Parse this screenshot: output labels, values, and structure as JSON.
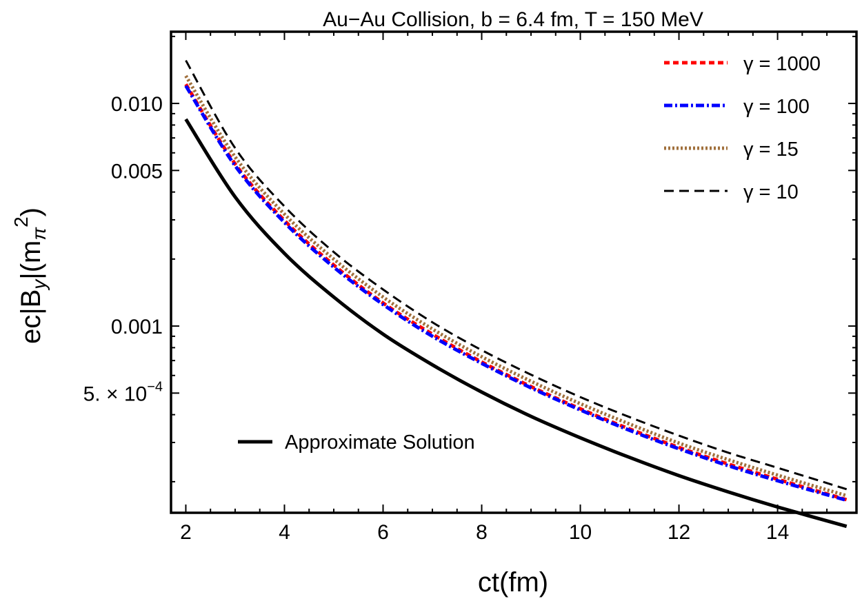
{
  "chart_data": {
    "type": "line",
    "title": "Au−Au Collision, b = 6.4 fm, T = 150 MeV",
    "xlabel": "ct(fm)",
    "ylabel": {
      "prefix": "ec|B",
      "sub": "y",
      "mid": "|(m",
      "sub2": "π",
      "sup": "2",
      "suffix": ")"
    },
    "xlim": [
      1.7,
      15.6
    ],
    "ylim": [
      0.000145,
      0.021
    ],
    "yscale": "log",
    "x_ticks": [
      2,
      4,
      6,
      8,
      10,
      12,
      14
    ],
    "x_tick_labels": [
      "2",
      "4",
      "6",
      "8",
      "10",
      "12",
      "14"
    ],
    "y_ticks": [
      0.01,
      0.005,
      0.001,
      0.0005
    ],
    "y_tick_labels": [
      "0.010",
      "0.005",
      "0.001",
      "5. × 10"
    ],
    "y_tick_exp": "−4",
    "x": [
      2,
      3,
      4,
      5,
      6,
      7,
      8,
      9,
      10,
      11,
      12,
      13,
      14,
      15.4
    ],
    "series": [
      {
        "name": "γ = 1000",
        "color": "#ff0000",
        "dash": "8,5",
        "width": 5,
        "values": [
          0.0122,
          0.00535,
          0.00298,
          0.00188,
          0.00127,
          0.00092,
          0.00069,
          0.000535,
          0.000425,
          0.000345,
          0.000285,
          0.00024,
          0.000205,
          0.000166
        ]
      },
      {
        "name": "γ = 100",
        "color": "#0000ff",
        "dash": "12,4,3,4",
        "width": 5,
        "values": [
          0.012,
          0.00525,
          0.00292,
          0.00184,
          0.00125,
          0.0009,
          0.00068,
          0.000528,
          0.00042,
          0.00034,
          0.000281,
          0.000236,
          0.000202,
          0.000165
        ]
      },
      {
        "name": "γ = 15",
        "color": "#a0703c",
        "dash": "3,3",
        "width": 5,
        "values": [
          0.0133,
          0.00575,
          0.00318,
          0.002,
          0.00135,
          0.00097,
          0.000728,
          0.000565,
          0.000448,
          0.000363,
          0.000298,
          0.000251,
          0.000214,
          0.000173
        ]
      },
      {
        "name": "γ = 10",
        "color": "#000000",
        "dash": "14,8",
        "width": 3,
        "values": [
          0.0156,
          0.0063,
          0.00345,
          0.00215,
          0.00146,
          0.00104,
          0.00078,
          0.000605,
          0.00048,
          0.00039,
          0.000322,
          0.00027,
          0.000231,
          0.000185
        ]
      },
      {
        "name": "Approximate Solution",
        "color": "#000000",
        "dash": "",
        "width": 5,
        "values": [
          0.0085,
          0.0038,
          0.00212,
          0.00135,
          0.00092,
          0.00067,
          0.000505,
          0.000393,
          0.000315,
          0.000257,
          0.000213,
          0.00018,
          0.000154,
          0.000126
        ]
      }
    ],
    "legend_position": "top-right"
  }
}
